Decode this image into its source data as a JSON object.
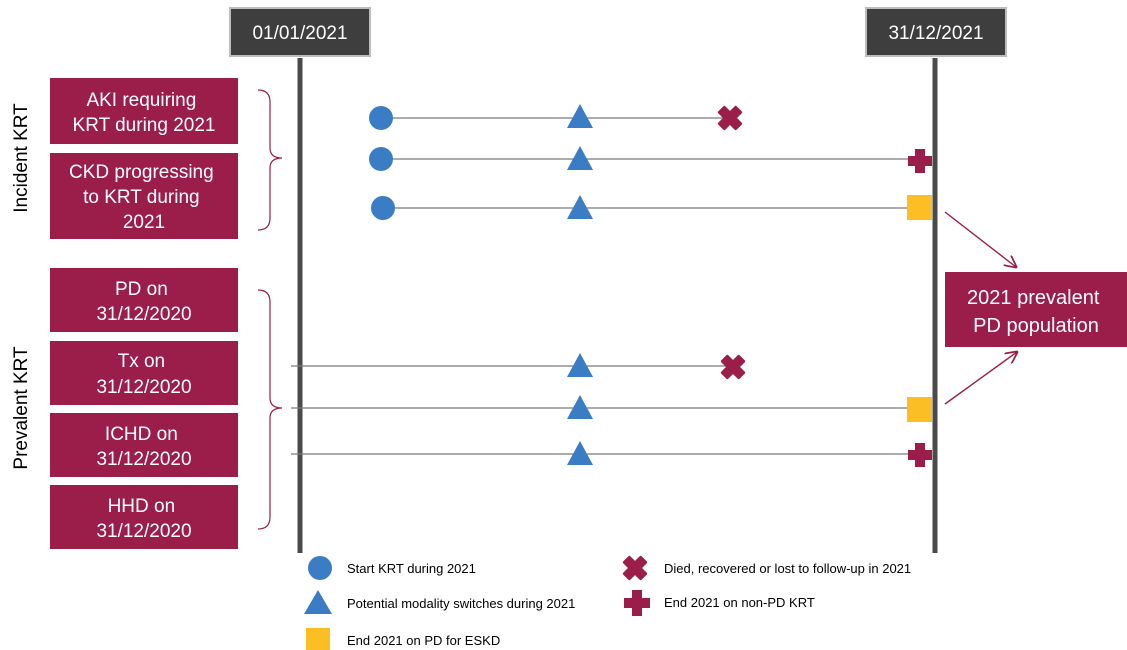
{
  "colors": {
    "box": "#9b1d4a",
    "date_box": "#3e3e3e",
    "start_marker": "#3b7dc4",
    "switch_marker": "#3b7dc4",
    "end_pd_marker": "#fbbf24",
    "death_marker": "#9b1d4a",
    "end_non_pd_marker": "#9b1d4a",
    "timeline": "#4a4a4a",
    "path_line": "#7a7a7a"
  },
  "dates": {
    "start": "01/01/2021",
    "end": "31/12/2021"
  },
  "groups": {
    "incident": {
      "label": "Incident KRT",
      "boxes": [
        {
          "lines": [
            "AKI requiring",
            "KRT during 2021"
          ]
        },
        {
          "lines": [
            "CKD progressing",
            "to KRT during",
            "2021"
          ]
        }
      ]
    },
    "prevalent": {
      "label": "Prevalent KRT",
      "boxes": [
        {
          "lines": [
            "PD on",
            "31/12/2020"
          ]
        },
        {
          "lines": [
            "Tx on",
            "31/12/2020"
          ]
        },
        {
          "lines": [
            "ICHD on",
            "31/12/2020"
          ]
        },
        {
          "lines": [
            "HHD on",
            "31/12/2020"
          ]
        }
      ]
    }
  },
  "outcome_box": {
    "lines": [
      "2021 prevalent",
      "PD  population"
    ]
  },
  "paths": [
    {
      "start": "start-circle",
      "end": "death-x"
    },
    {
      "start": "start-circle",
      "end": "non-pd-cross"
    },
    {
      "start": "start-circle",
      "end": "pd-square"
    },
    {
      "start": "prevalent-line",
      "end": "death-x"
    },
    {
      "start": "prevalent-line",
      "end": "pd-square"
    },
    {
      "start": "prevalent-line",
      "end": "non-pd-cross"
    }
  ],
  "legend": {
    "start": "Start KRT during 2021",
    "switch": "Potential modality switches during 2021",
    "end_pd": "End 2021 on PD for ESKD",
    "death": "Died, recovered or lost to follow-up in 2021",
    "end_non_pd": "End 2021 on non-PD KRT"
  }
}
